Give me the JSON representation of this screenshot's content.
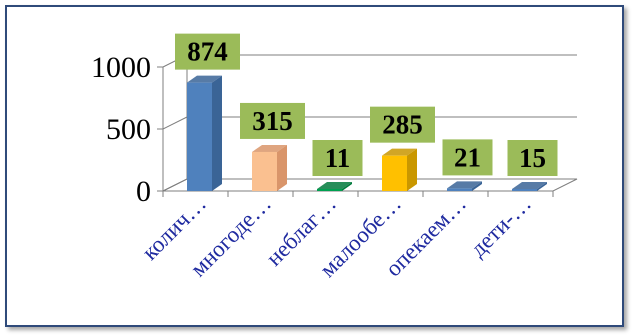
{
  "chart_data": {
    "type": "bar",
    "style": "3d-column",
    "categories": [
      "колич…",
      "многоде…",
      "неблаг…",
      "малообе…",
      "опекаем…",
      "дети-…"
    ],
    "values": [
      874,
      315,
      11,
      285,
      21,
      15
    ],
    "y_ticks": [
      "0",
      "500",
      "1000"
    ],
    "ylim": [
      0,
      1000
    ],
    "grid": true,
    "legend": "none",
    "title": "",
    "xlabel": "",
    "ylabel": "",
    "colors": {
      "bars": [
        "#4f81bd",
        "#fac090",
        "#00a050",
        "#ffc000",
        "#4f81bd",
        "#4f81bd"
      ],
      "bar_sides": [
        "#3a6496",
        "#d9956a",
        "#007a3c",
        "#c99700",
        "#3a6496",
        "#3a6496"
      ],
      "label_box": "#9bbb59",
      "axis_text": "#1f2aa0",
      "frame": "#2f4a7a"
    }
  }
}
